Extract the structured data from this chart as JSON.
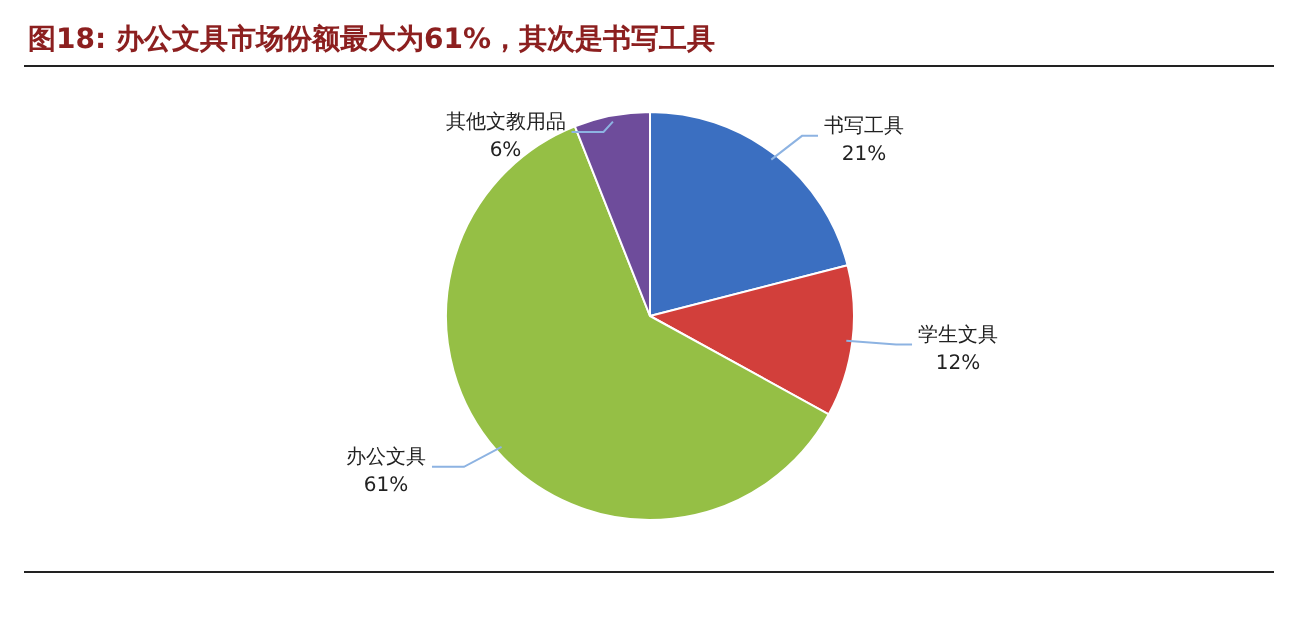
{
  "chart_data": {
    "type": "pie",
    "title": "图18:    办公文具市场份额最大为61%，其次是书写工具",
    "categories": [
      "书写工具",
      "学生文具",
      "办公文具",
      "其他文教用品"
    ],
    "values": [
      21,
      12,
      61,
      6
    ],
    "colors": [
      "#3b6fc1",
      "#d23f3b",
      "#95bf45",
      "#6e4c9b"
    ],
    "value_labels": [
      "21%",
      "12%",
      "61%",
      "6%"
    ]
  }
}
